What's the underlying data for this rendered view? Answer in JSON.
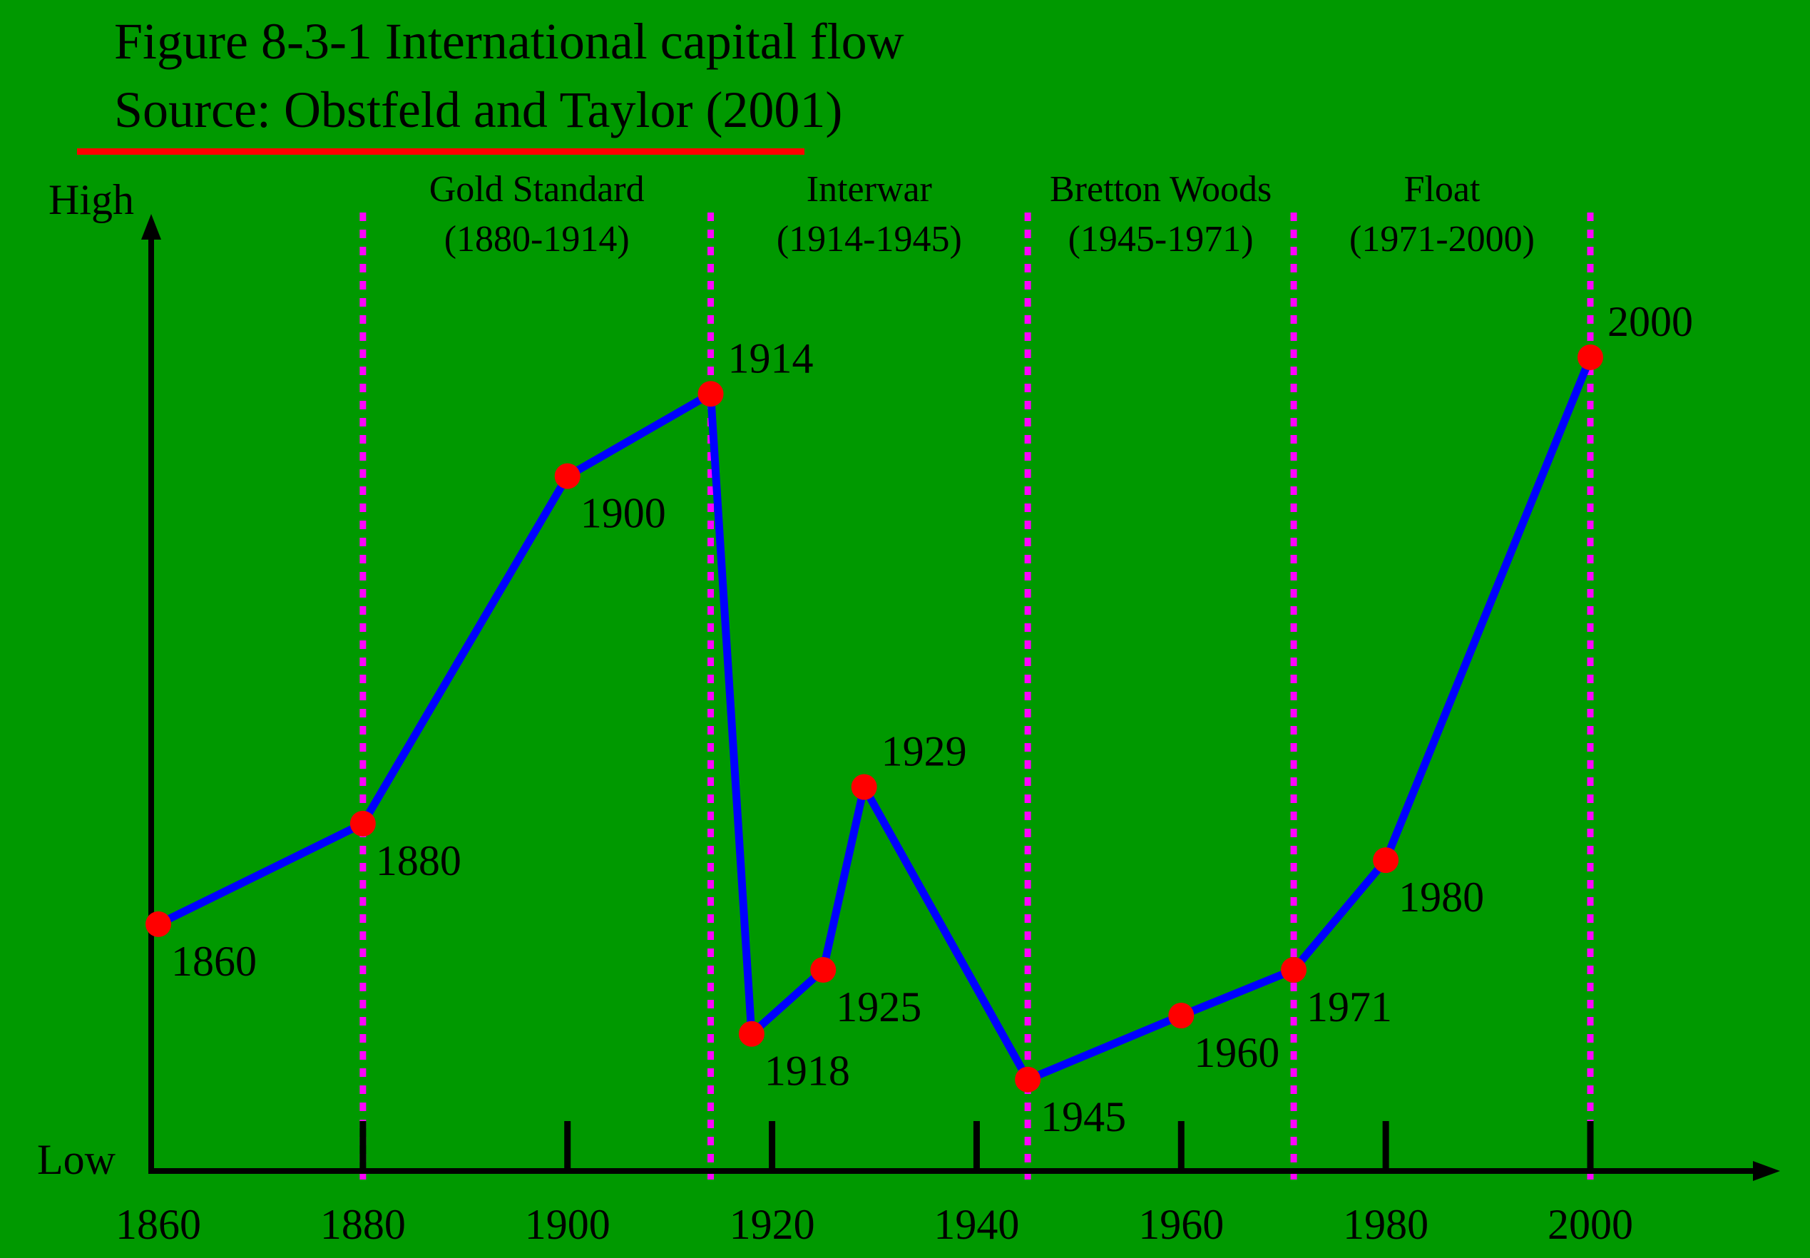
{
  "header": {
    "title": "Figure 8-3-1 International capital flow",
    "source": "Source: Obstfeld and Taylor (2001)"
  },
  "colors": {
    "background": "#009900",
    "line": "#0000ff",
    "marker": "#ff0000",
    "divider": "#ff00ff",
    "underline": "#ff0000",
    "axis": "#000000"
  },
  "chart_data": {
    "type": "line",
    "title": "Figure 8-3-1 International capital flow",
    "subtitle": "Source: Obstfeld and Taylor (2001)",
    "xlabel": "",
    "ylabel": "",
    "y_axis_labels": {
      "high": "High",
      "low": "Low"
    },
    "xlim": [
      1860,
      2000
    ],
    "ylim": [
      0,
      100
    ],
    "x_ticks": [
      1860,
      1880,
      1900,
      1920,
      1940,
      1960,
      1980,
      2000
    ],
    "x_tick_labels": [
      "1860",
      "1880",
      "1900",
      "1920",
      "1940",
      "1960",
      "1980",
      "2000"
    ],
    "grid": false,
    "series": [
      {
        "points": [
          {
            "x": 1860,
            "y": 27,
            "label": "1860"
          },
          {
            "x": 1880,
            "y": 38,
            "label": "1880"
          },
          {
            "x": 1900,
            "y": 76,
            "label": "1900"
          },
          {
            "x": 1914,
            "y": 85,
            "label": "1914"
          },
          {
            "x": 1918,
            "y": 15,
            "label": "1918"
          },
          {
            "x": 1925,
            "y": 22,
            "label": "1925"
          },
          {
            "x": 1929,
            "y": 42,
            "label": "1929"
          },
          {
            "x": 1945,
            "y": 10,
            "label": "1945"
          },
          {
            "x": 1960,
            "y": 17,
            "label": "1960"
          },
          {
            "x": 1971,
            "y": 22,
            "label": "1971"
          },
          {
            "x": 1980,
            "y": 34,
            "label": "1980"
          },
          {
            "x": 2000,
            "y": 89,
            "label": "2000"
          }
        ]
      }
    ],
    "periods": [
      {
        "name": "Gold Standard",
        "range": "(1880-1914)",
        "start": 1880,
        "end": 1914
      },
      {
        "name": "Interwar",
        "range": "(1914-1945)",
        "start": 1914,
        "end": 1945
      },
      {
        "name": "Bretton Woods",
        "range": "(1945-1971)",
        "start": 1945,
        "end": 1971
      },
      {
        "name": "Float",
        "range": "(1971-2000)",
        "start": 1971,
        "end": 2000
      }
    ]
  }
}
